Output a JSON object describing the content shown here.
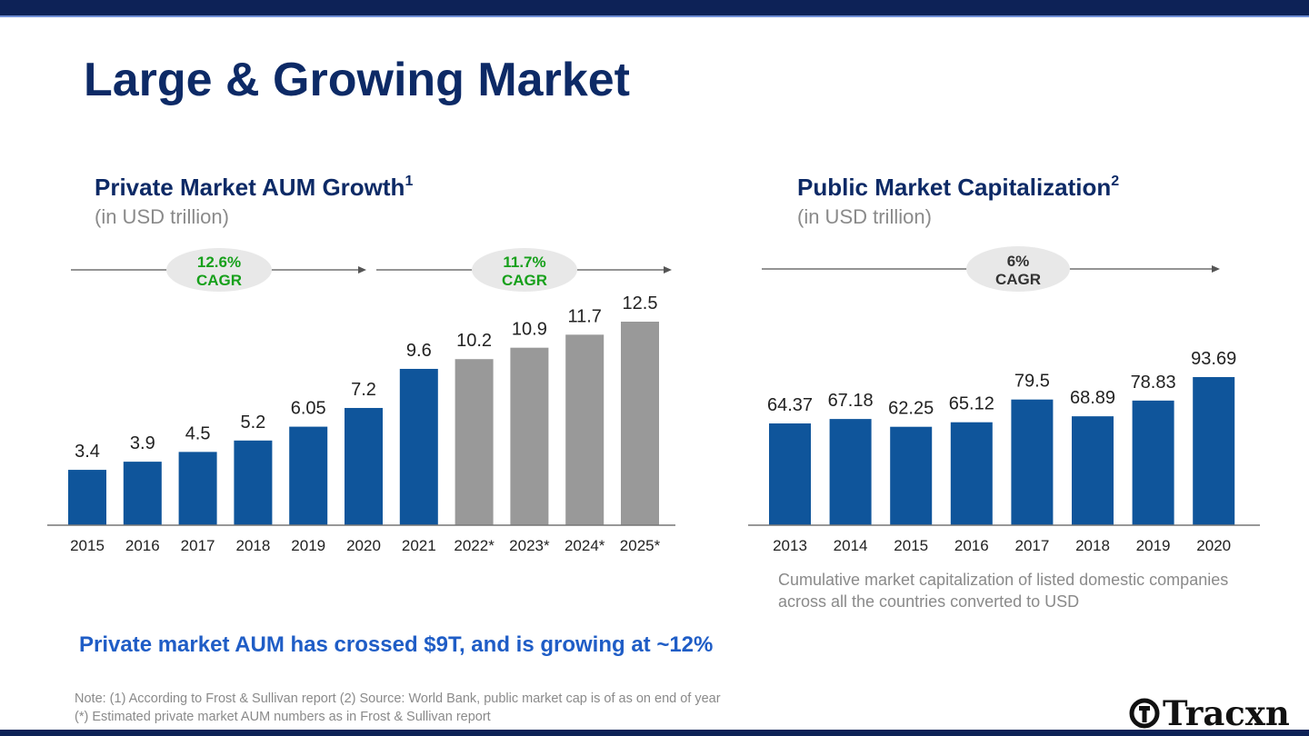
{
  "title": "Large & Growing Market",
  "colors": {
    "navy": "#0d2257",
    "bar_actual": "#0f559b",
    "bar_estimate": "#999999",
    "cagr_green": "#17a01b",
    "cagr_dark": "#333333",
    "highlight": "#1f5dc6"
  },
  "left_chart": {
    "title": "Private Market AUM Growth",
    "title_sup": "1",
    "subtitle": "(in USD trillion)"
  },
  "right_chart": {
    "title": "Public Market Capitalization",
    "title_sup": "2",
    "subtitle": "(in USD trillion)"
  },
  "chart_data": [
    {
      "type": "bar",
      "categories": [
        "2015",
        "2016",
        "2017",
        "2018",
        "2019",
        "2020",
        "2021",
        "2022*",
        "2023*",
        "2024*",
        "2025*"
      ],
      "values": [
        3.4,
        3.9,
        4.5,
        5.2,
        6.05,
        7.2,
        9.6,
        10.2,
        10.9,
        11.7,
        12.5
      ],
      "labels": [
        "3.4",
        "3.9",
        "4.5",
        "5.2",
        "6.05",
        "7.2",
        "9.6",
        "10.2",
        "10.9",
        "11.7",
        "12.5"
      ],
      "estimated": [
        false,
        false,
        false,
        false,
        false,
        false,
        false,
        true,
        true,
        true,
        true
      ],
      "title": "Private Market AUM Growth",
      "ylabel": "",
      "ylim": [
        0,
        12.5
      ],
      "grid": false,
      "annotations": [
        {
          "line1": "12.6%",
          "line2": "CAGR",
          "color": "#17a01b"
        },
        {
          "line1": "11.7%",
          "line2": "CAGR",
          "color": "#17a01b"
        }
      ]
    },
    {
      "type": "bar",
      "categories": [
        "2013",
        "2014",
        "2015",
        "2016",
        "2017",
        "2018",
        "2019",
        "2020"
      ],
      "values": [
        64.37,
        67.18,
        62.25,
        65.12,
        79.5,
        68.89,
        78.83,
        93.69
      ],
      "labels": [
        "64.37",
        "67.18",
        "62.25",
        "65.12",
        "79.5",
        "68.89",
        "78.83",
        "93.69"
      ],
      "title": "Public Market Capitalization",
      "ylabel": "",
      "ylim": [
        0,
        93.69
      ],
      "grid": false,
      "annotations": [
        {
          "line1": "6%",
          "line2": "CAGR",
          "color": "#333333"
        }
      ]
    }
  ],
  "caption": {
    "line1": "Cumulative market capitalization of listed domestic companies",
    "line2": "across all the countries converted to USD"
  },
  "highlight": "Private market AUM has crossed $9T, and is growing at ~12%",
  "note": {
    "line1": "Note: (1) According to Frost & Sullivan report (2) Source: World Bank, public market cap is of as on end of year",
    "line2": "(*) Estimated private market AUM numbers as in Frost & Sullivan report"
  },
  "logo": {
    "text": "Tracxn",
    "icon": "tracxn-logo-icon"
  }
}
